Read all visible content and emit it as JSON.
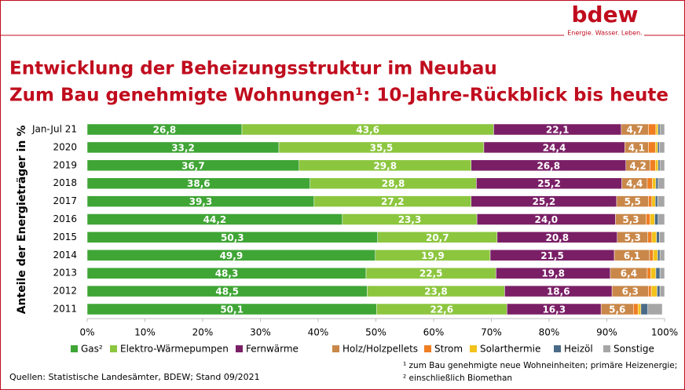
{
  "header": {
    "logo": "bdew",
    "slogan": "Energie. Wasser. Leben."
  },
  "chart_data": {
    "type": "stacked-bar-horizontal",
    "title": "Entwicklung der Beheizungsstruktur im Neubau",
    "subtitle": "Zum Bau genehmigte Wohnungen¹: 10-Jahre-Rückblick bis heute",
    "y_label": "Anteile der Energieträger in %",
    "categories": [
      "Jan-Jul 21",
      "2020",
      "2019",
      "2018",
      "2017",
      "2016",
      "2015",
      "2014",
      "2013",
      "2012",
      "2011"
    ],
    "series": [
      {
        "name": "Gas²",
        "color": "#3fa535",
        "values": [
          26.8,
          33.2,
          36.7,
          38.6,
          39.3,
          44.2,
          50.3,
          49.9,
          48.3,
          48.5,
          50.1
        ],
        "value_labels": [
          "26,8",
          "33,2",
          "36,7",
          "38,6",
          "39,3",
          "44,2",
          "50,3",
          "49,9",
          "48,3",
          "48,5",
          "50,1"
        ]
      },
      {
        "name": "Elektro-Wärmepumpen",
        "color": "#8cc63f",
        "values": [
          43.6,
          35.5,
          29.8,
          28.8,
          27.2,
          23.3,
          20.7,
          19.9,
          22.5,
          23.8,
          22.6
        ],
        "value_labels": [
          "43,6",
          "35,5",
          "29,8",
          "28,8",
          "27,2",
          "23,3",
          "20,7",
          "19,9",
          "22,5",
          "23,8",
          "22,6"
        ]
      },
      {
        "name": "Fernwärme",
        "color": "#7a1f66",
        "values": [
          22.1,
          24.4,
          26.8,
          25.2,
          25.2,
          24.0,
          20.8,
          21.5,
          19.8,
          18.6,
          16.3
        ],
        "value_labels": [
          "22,1",
          "24,4",
          "26,8",
          "25,2",
          "25,2",
          "24,0",
          "20,8",
          "21,5",
          "19,8",
          "18,6",
          "16,3"
        ]
      },
      {
        "name": "Holz/Holzpellets",
        "color": "#c9884a",
        "values": [
          4.7,
          4.1,
          4.2,
          4.4,
          5.5,
          5.3,
          5.3,
          6.1,
          6.4,
          6.3,
          5.6
        ],
        "value_labels": [
          "4,7",
          "4,1",
          "4,2",
          "4,4",
          "5,5",
          "5,3",
          "5,3",
          "6,1",
          "6,4",
          "6,3",
          "5,6"
        ]
      },
      {
        "name": "Strom",
        "color": "#ef7d22",
        "values": [
          1.3,
          1.2,
          0.9,
          0.9,
          0.6,
          0.7,
          0.7,
          0.6,
          0.6,
          0.5,
          0.8
        ]
      },
      {
        "name": "Solarthermie",
        "color": "#f2c21b",
        "values": [
          0.4,
          0.4,
          0.5,
          0.6,
          0.6,
          0.8,
          0.8,
          0.8,
          0.9,
          1.0,
          0.5
        ]
      },
      {
        "name": "Heizöl",
        "color": "#4a6b87",
        "values": [
          0.3,
          0.3,
          0.3,
          0.4,
          0.4,
          0.6,
          0.5,
          0.4,
          0.7,
          0.5,
          1.2
        ]
      },
      {
        "name": "Sonstige",
        "color": "#a6a6a6",
        "values": [
          0.8,
          0.9,
          0.8,
          1.1,
          1.2,
          1.1,
          0.9,
          0.8,
          0.8,
          0.8,
          2.5
        ]
      }
    ],
    "xlim": [
      0,
      100
    ],
    "xticks": [
      {
        "value": 0,
        "label": "0%"
      },
      {
        "value": 10,
        "label": "10%"
      },
      {
        "value": 20,
        "label": "20%"
      },
      {
        "value": 30,
        "label": "30%"
      },
      {
        "value": 40,
        "label": "40%"
      },
      {
        "value": 50,
        "label": "50%"
      },
      {
        "value": 60,
        "label": "60%"
      },
      {
        "value": 70,
        "label": "70%"
      },
      {
        "value": 80,
        "label": "80%"
      },
      {
        "value": 90,
        "label": "90%"
      },
      {
        "value": 100,
        "label": "100%"
      }
    ],
    "source": "Quellen: Statistische Landesämter, BDEW; Stand 09/2021",
    "footnotes": [
      "¹ zum Bau genehmigte neue Wohneinheiten; primäre Heizenergie;",
      "² einschließlich Biomethan"
    ]
  }
}
